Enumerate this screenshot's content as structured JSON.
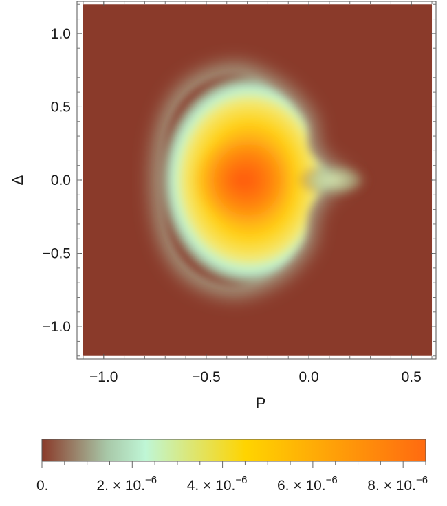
{
  "chart_data": {
    "type": "heatmap",
    "title": "",
    "xlabel": "P",
    "ylabel": "Δ",
    "xlim": [
      -1.13,
      0.62
    ],
    "ylim": [
      -1.22,
      1.22
    ],
    "x_ticks": [
      {
        "value": -1.0,
        "label": "−1.0"
      },
      {
        "value": -0.5,
        "label": "−0.5"
      },
      {
        "value": 0.0,
        "label": "0.0"
      },
      {
        "value": 0.5,
        "label": "0.5"
      }
    ],
    "y_ticks": [
      {
        "value": 1.0,
        "label": "1.0"
      },
      {
        "value": 0.5,
        "label": "0.5"
      },
      {
        "value": 0.0,
        "label": "0.0"
      },
      {
        "value": -0.5,
        "label": "−0.5"
      },
      {
        "value": -1.0,
        "label": "−1.0"
      }
    ],
    "grid": false,
    "colorbar": {
      "orientation": "horizontal",
      "placement": "bottom",
      "range": [
        0,
        8.5e-06
      ],
      "ticks": [
        {
          "value": 0,
          "base": "0.",
          "exponent": ""
        },
        {
          "value": 2e-06,
          "base": "2. × 10.",
          "exponent": "−6"
        },
        {
          "value": 4e-06,
          "base": "4. × 10.",
          "exponent": "−6"
        },
        {
          "value": 6e-06,
          "base": "6. × 10.",
          "exponent": "−6"
        },
        {
          "value": 8e-06,
          "base": "8. × 10.",
          "exponent": "−6"
        }
      ],
      "colors": [
        "#8a3a2a",
        "#a8c8a8",
        "#bff6d6",
        "#ffd400",
        "#ff6a10"
      ]
    },
    "data_region": {
      "p_min": -1.1,
      "p_max": 0.6,
      "delta_min": -1.2,
      "delta_max": 1.2
    },
    "feature": {
      "description_values": {
        "peak_center": [
          -0.35,
          0.0
        ],
        "peak_value": 8.5e-06,
        "halo_extent_p": [
          -0.72,
          0.15
        ],
        "halo_extent_delta": [
          -0.72,
          0.72
        ]
      }
    }
  }
}
